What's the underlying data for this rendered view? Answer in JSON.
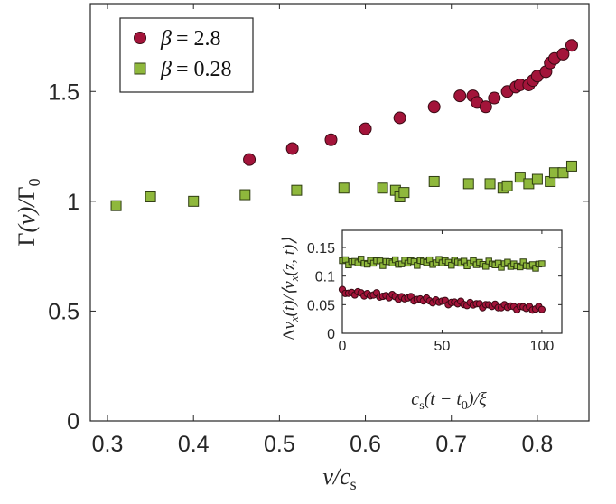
{
  "chart_data": [
    {
      "type": "scatter",
      "xlabel": "v/c_s",
      "ylabel": "Γ(v)/Γ_0",
      "xlim": [
        0.28,
        0.86
      ],
      "ylim": [
        0,
        1.9
      ],
      "xticks": [
        "0.3",
        "0.4",
        "0.5",
        "0.6",
        "0.7",
        "0.8"
      ],
      "yticks": [
        "0",
        "0.5",
        "1",
        "1.5"
      ],
      "legend_position": "top-left",
      "series": [
        {
          "name": "β = 2.8",
          "marker": "circle",
          "color": "#a3143a",
          "x": [
            0.465,
            0.515,
            0.56,
            0.6,
            0.64,
            0.68,
            0.71,
            0.725,
            0.73,
            0.74,
            0.75,
            0.765,
            0.775,
            0.78,
            0.79,
            0.795,
            0.8,
            0.81,
            0.815,
            0.82,
            0.83,
            0.84
          ],
          "y": [
            1.19,
            1.24,
            1.28,
            1.33,
            1.38,
            1.43,
            1.48,
            1.48,
            1.45,
            1.43,
            1.47,
            1.5,
            1.52,
            1.53,
            1.53,
            1.55,
            1.57,
            1.59,
            1.63,
            1.65,
            1.67,
            1.71
          ]
        },
        {
          "name": "β = 0.28",
          "marker": "square",
          "color": "#8fb83c",
          "x": [
            0.31,
            0.35,
            0.4,
            0.46,
            0.52,
            0.575,
            0.62,
            0.635,
            0.64,
            0.645,
            0.68,
            0.72,
            0.745,
            0.76,
            0.765,
            0.78,
            0.79,
            0.8,
            0.815,
            0.82,
            0.83,
            0.84
          ],
          "y": [
            0.98,
            1.02,
            1.0,
            1.03,
            1.05,
            1.06,
            1.06,
            1.05,
            1.02,
            1.04,
            1.09,
            1.08,
            1.08,
            1.06,
            1.07,
            1.11,
            1.08,
            1.1,
            1.09,
            1.13,
            1.13,
            1.16
          ]
        }
      ]
    },
    {
      "type": "scatter",
      "role": "inset",
      "xlabel": "c_s(t − t_0)/ξ",
      "ylabel": "Δv_x(t)/⟨v_x(z,t)⟩",
      "xlim": [
        0,
        110
      ],
      "ylim": [
        0,
        0.18
      ],
      "xticks": [
        "0",
        "50",
        "100"
      ],
      "yticks": [
        "0",
        "0.05",
        "0.1",
        "0.15"
      ],
      "series": [
        {
          "name": "β = 0.28",
          "marker": "square",
          "color": "#8fb83c",
          "x_start": 0,
          "x_end": 100,
          "count": 65,
          "trend": {
            "x": [
              0,
              25,
              50,
              75,
              100
            ],
            "y": [
              0.125,
              0.124,
              0.125,
              0.121,
              0.118
            ]
          },
          "jitter": 0.004
        },
        {
          "name": "β = 2.8",
          "marker": "circle",
          "color": "#a3143a",
          "x_start": 0,
          "x_end": 100,
          "count": 65,
          "trend": {
            "x": [
              0,
              25,
              50,
              75,
              100
            ],
            "y": [
              0.072,
              0.064,
              0.055,
              0.048,
              0.043
            ]
          },
          "jitter": 0.003
        }
      ]
    }
  ],
  "legend": [
    {
      "symbol": "β",
      "eq": "= 2.8"
    },
    {
      "symbol": "β",
      "eq": "= 0.28"
    }
  ]
}
